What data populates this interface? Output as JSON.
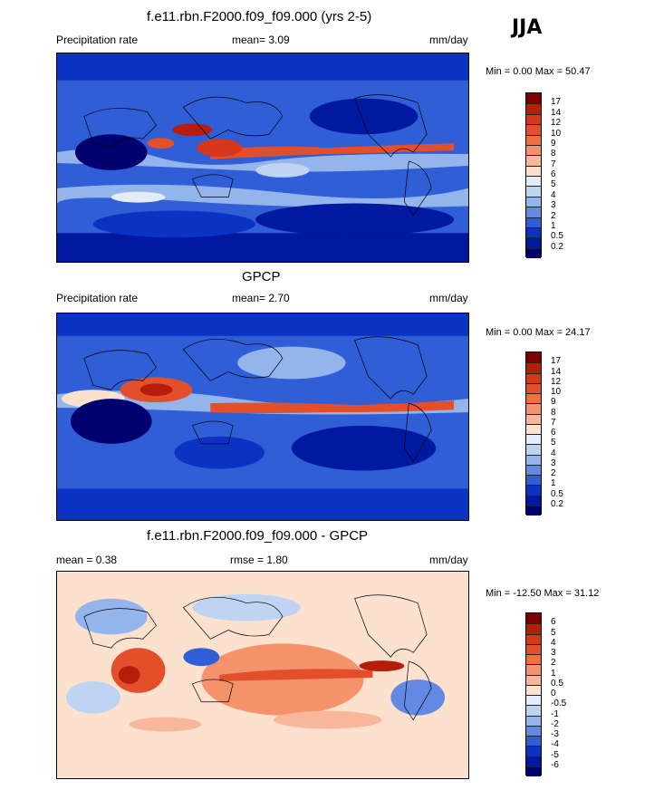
{
  "season": "JJA",
  "panels": [
    {
      "title": "f.e11.rbn.F2000.f09_f09.000 (yrs 2-5)",
      "left_label": "Precipitation rate",
      "center_label": "mean=   3.09",
      "units": "mm/day",
      "minmax": "Min =   0.00 Max =  50.47",
      "colorbar": {
        "labels": [
          "17",
          "14",
          "12",
          "10",
          "9",
          "8",
          "7",
          "6",
          "5",
          "4",
          "3",
          "2",
          "1",
          "0.5",
          "0.2"
        ],
        "colors": [
          "#7f0000",
          "#b81c0a",
          "#d6361a",
          "#e34f2a",
          "#ee7040",
          "#f4926b",
          "#f8b79b",
          "#fde1cf",
          "#e4ecf9",
          "#bfd3f2",
          "#94b4ec",
          "#6389e2",
          "#2f5ed6",
          "#0a33c4",
          "#0019a0",
          "#00006e"
        ]
      }
    },
    {
      "title": "GPCP",
      "left_label": "Precipitation rate",
      "center_label": "mean=   2.70",
      "units": "mm/day",
      "minmax": "Min =   0.00 Max =  24.17",
      "colorbar": {
        "labels": [
          "17",
          "14",
          "12",
          "10",
          "9",
          "8",
          "7",
          "6",
          "5",
          "4",
          "3",
          "2",
          "1",
          "0.5",
          "0.2"
        ],
        "colors": [
          "#7f0000",
          "#b81c0a",
          "#d6361a",
          "#e34f2a",
          "#ee7040",
          "#f4926b",
          "#f8b79b",
          "#fde1cf",
          "#e4ecf9",
          "#bfd3f2",
          "#94b4ec",
          "#6389e2",
          "#2f5ed6",
          "#0a33c4",
          "#0019a0",
          "#00006e"
        ]
      }
    },
    {
      "title": "f.e11.rbn.F2000.f09_f09.000 - GPCP",
      "left_label": "mean =   0.38",
      "center_label": "rmse =   1.80",
      "units": "mm/day",
      "minmax": "Min = -12.50 Max =  31.12",
      "colorbar": {
        "labels": [
          "6",
          "5",
          "4",
          "3",
          "2",
          "1",
          "0.5",
          "0",
          "-0.5",
          "-1",
          "-2",
          "-3",
          "-4",
          "-5",
          "-6"
        ],
        "colors": [
          "#7f0000",
          "#b81c0a",
          "#d6361a",
          "#e34f2a",
          "#ee7040",
          "#f4926b",
          "#f8b79b",
          "#fde1cf",
          "#e4ecf9",
          "#bfd3f2",
          "#94b4ec",
          "#6389e2",
          "#2f5ed6",
          "#0a33c4",
          "#0019a0",
          "#00006e"
        ]
      }
    }
  ]
}
